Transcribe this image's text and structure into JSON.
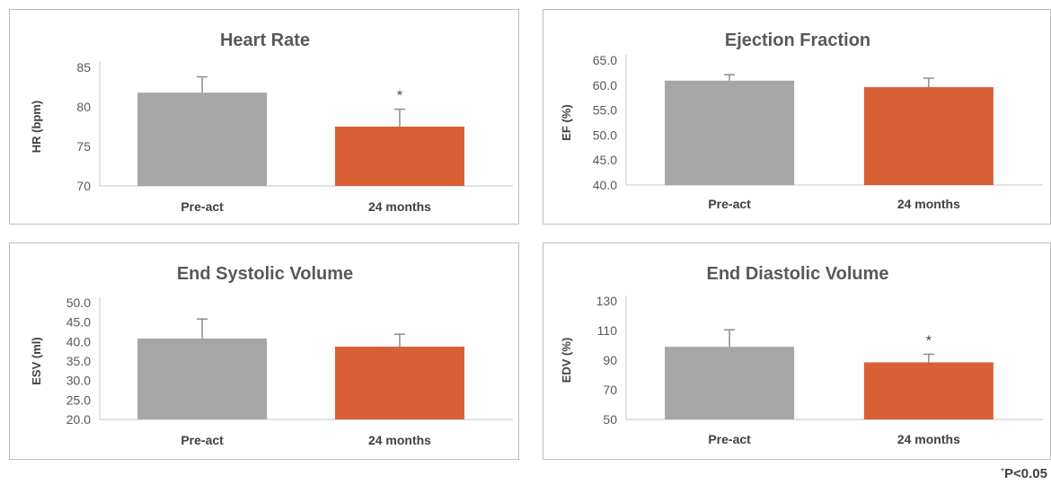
{
  "chart_data": [
    {
      "type": "bar",
      "title": "Heart Rate",
      "ylabel": "HR (bpm)",
      "categories": [
        "Pre-act",
        "24 months"
      ],
      "values": [
        81.8,
        77.5
      ],
      "errors": [
        2.0,
        2.2
      ],
      "significance": [
        "",
        "*"
      ],
      "ylim": [
        70,
        85
      ],
      "yticks": [
        "70",
        "75",
        "80",
        "85"
      ],
      "colors": [
        "#a6a6a6",
        "#d95f35"
      ],
      "grid": false
    },
    {
      "type": "bar",
      "title": "Ejection Fraction",
      "ylabel": "EF (%)",
      "categories": [
        "Pre-act",
        "24 months"
      ],
      "values": [
        60.9,
        59.6
      ],
      "errors": [
        1.2,
        1.8
      ],
      "significance": [
        "",
        ""
      ],
      "ylim": [
        40,
        65
      ],
      "yticks": [
        "40.0",
        "45.0",
        "50.0",
        "55.0",
        "60.0",
        "65.0"
      ],
      "colors": [
        "#a6a6a6",
        "#d95f35"
      ],
      "grid": false
    },
    {
      "type": "bar",
      "title": "End Systolic Volume",
      "ylabel": "ESV (ml)",
      "categories": [
        "Pre-act",
        "24 months"
      ],
      "values": [
        40.8,
        38.7
      ],
      "errors": [
        5.0,
        3.2
      ],
      "significance": [
        "",
        ""
      ],
      "ylim": [
        20,
        50
      ],
      "yticks": [
        "20.0",
        "25.0",
        "30.0",
        "35.0",
        "40.0",
        "45.0",
        "50.0"
      ],
      "colors": [
        "#a6a6a6",
        "#d95f35"
      ],
      "grid": false
    },
    {
      "type": "bar",
      "title": "End Diastolic Volume",
      "ylabel": "EDV (%)",
      "categories": [
        "Pre-act",
        "24 months"
      ],
      "values": [
        99,
        88.5
      ],
      "errors": [
        11.5,
        5.5
      ],
      "significance": [
        "",
        "*"
      ],
      "ylim": [
        50,
        130
      ],
      "yticks": [
        "50",
        "70",
        "90",
        "110",
        "130"
      ],
      "colors": [
        "#a6a6a6",
        "#d95f35"
      ],
      "grid": false
    }
  ],
  "footnote": {
    "star": "*",
    "text": "P<0.05"
  }
}
